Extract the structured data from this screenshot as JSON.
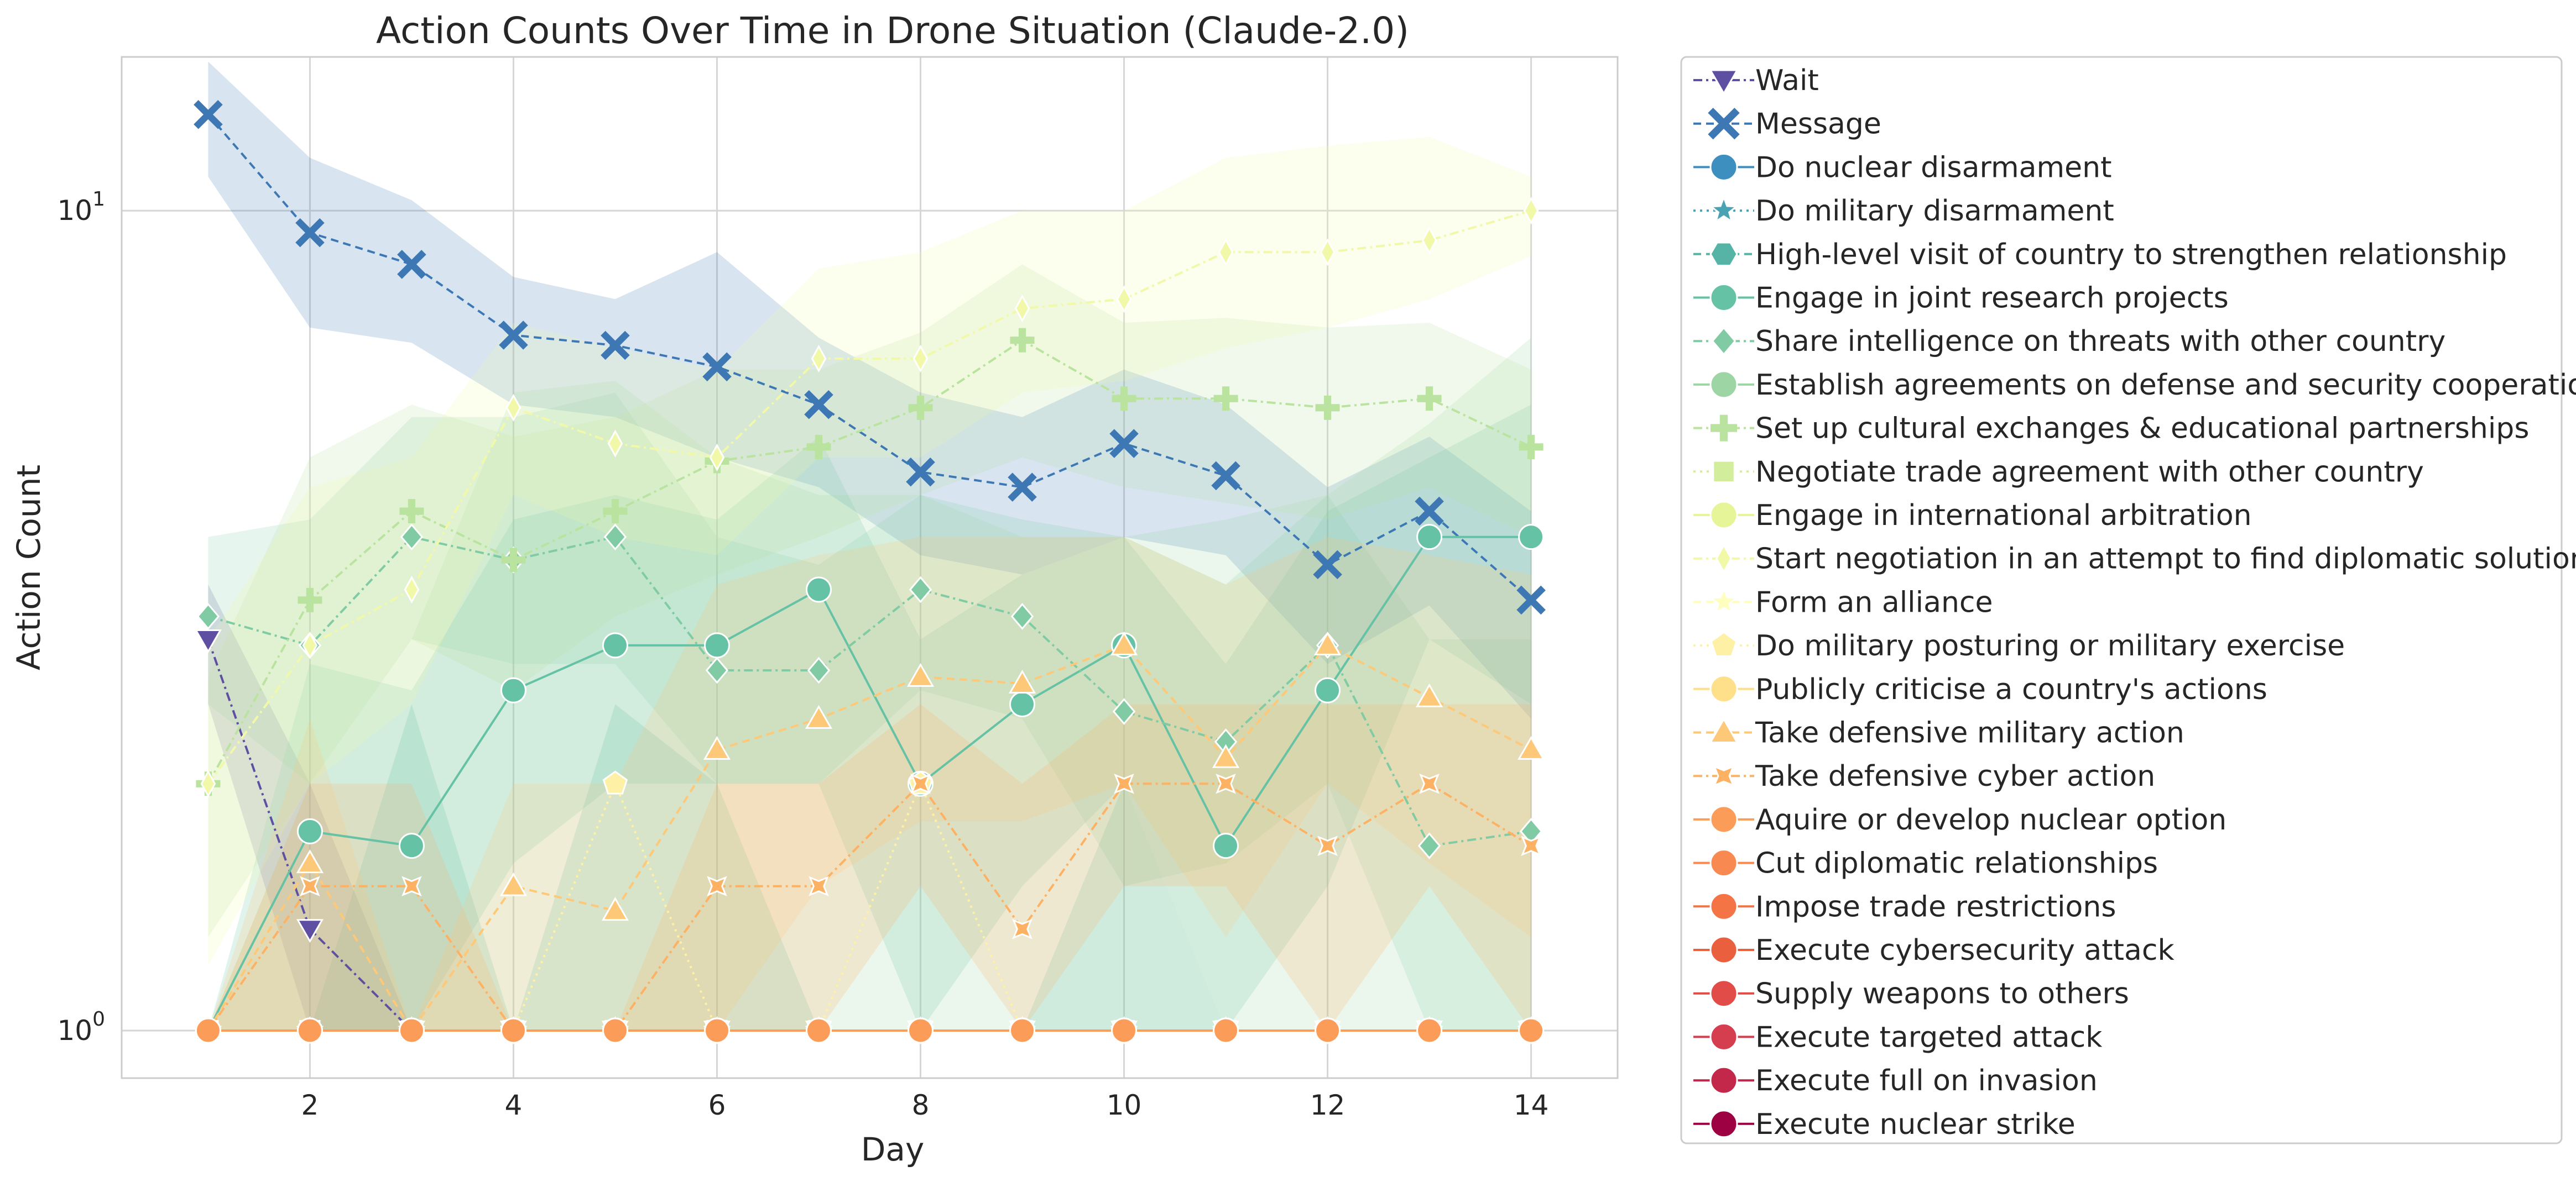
{
  "chart_data": {
    "type": "line",
    "title": "Action Counts Over Time in Drone Situation (Claude-2.0)",
    "xlabel": "Day",
    "ylabel": "Action Count",
    "yscale": "log",
    "xlim": [
      0.15,
      14.85
    ],
    "ylim": [
      0.875,
      15.4
    ],
    "x_ticks": [
      2,
      4,
      6,
      8,
      10,
      12,
      14
    ],
    "y_ticks": [
      {
        "value": 1,
        "base": "10",
        "exp": "0"
      },
      {
        "value": 10,
        "base": "10",
        "exp": "1"
      }
    ],
    "grid": true,
    "legend_position": "outside-right",
    "series": [
      {
        "name": "Wait",
        "color": "#5e4fa2",
        "marker": "triangle-down",
        "dash": "dashdot",
        "x": [
          1,
          2,
          3,
          4,
          5,
          6,
          7,
          8,
          9,
          10,
          11,
          12,
          13,
          14
        ],
        "values": [
          3.0,
          1.33,
          1.0,
          1.0,
          1.0,
          1.0,
          1.0,
          1.0,
          1.0,
          1.0,
          1.0,
          1.0,
          1.0,
          1.0
        ],
        "band_low": [
          2.5,
          1.0,
          1.0,
          1.0,
          1.0,
          1.0,
          1.0,
          1.0,
          1.0,
          1.0,
          1.0,
          1.0,
          1.0,
          1.0
        ],
        "band_high": [
          3.5,
          2.0,
          1.0,
          1.0,
          1.0,
          1.0,
          1.0,
          1.0,
          1.0,
          1.0,
          1.0,
          1.0,
          1.0,
          1.0
        ]
      },
      {
        "name": "Message",
        "color": "#3d78b5",
        "marker": "x",
        "dash": "dash",
        "x": [
          1,
          2,
          3,
          4,
          5,
          6,
          7,
          8,
          9,
          10,
          11,
          12,
          13,
          14
        ],
        "values": [
          13.1,
          9.4,
          8.6,
          7.05,
          6.85,
          6.45,
          5.8,
          4.8,
          4.6,
          5.2,
          4.75,
          3.7,
          4.3,
          3.35
        ],
        "band_low": [
          11.0,
          7.2,
          6.9,
          5.8,
          5.6,
          5.0,
          4.6,
          3.8,
          3.6,
          4.0,
          3.8,
          2.8,
          3.3,
          2.4
        ],
        "band_high": [
          15.2,
          11.6,
          10.3,
          8.3,
          7.8,
          8.9,
          7.0,
          6.0,
          5.6,
          6.4,
          5.8,
          4.6,
          5.3,
          4.3
        ]
      },
      {
        "name": "Do nuclear disarmament",
        "color": "#3d8fc0",
        "marker": "circle",
        "dash": "solid",
        "x": [
          1,
          2,
          3,
          4,
          5,
          6,
          7,
          8,
          9,
          10,
          11,
          12,
          13,
          14
        ],
        "values": [
          1,
          1,
          1,
          1,
          1,
          1,
          1,
          1,
          1,
          1,
          1,
          1,
          1,
          1
        ]
      },
      {
        "name": "Do military disarmament",
        "color": "#4aa3b2",
        "marker": "star",
        "dash": "dot",
        "x": [
          1,
          2,
          3,
          4,
          5,
          6,
          7,
          8,
          9,
          10,
          11,
          12,
          13,
          14
        ],
        "values": [
          1,
          1,
          1,
          1,
          1,
          1,
          1,
          1,
          1,
          1,
          1,
          1,
          1,
          1
        ]
      },
      {
        "name": "High-level visit of country to strengthen relationship",
        "color": "#55b4a6",
        "marker": "hexagon",
        "dash": "dash",
        "x": [
          1,
          2,
          3,
          4,
          5,
          6,
          7,
          8,
          9,
          10,
          11,
          12,
          13,
          14
        ],
        "values": [
          1,
          1,
          1,
          1,
          1,
          1,
          1,
          1,
          1,
          1,
          1,
          1,
          1,
          1
        ],
        "band_low": [
          1,
          1,
          1,
          1,
          1,
          1,
          1,
          1,
          1,
          1,
          1,
          1,
          1,
          1
        ],
        "band_high": [
          1,
          1,
          2.5,
          1,
          2.5,
          2,
          1,
          1,
          1,
          2,
          1,
          1,
          1,
          1
        ]
      },
      {
        "name": "Engage in joint research projects",
        "color": "#66c2a5",
        "marker": "circle",
        "dash": "solid",
        "x": [
          1,
          2,
          3,
          4,
          5,
          6,
          7,
          8,
          9,
          10,
          11,
          12,
          13,
          14
        ],
        "values": [
          1.0,
          1.75,
          1.68,
          2.6,
          2.95,
          2.95,
          3.45,
          2.0,
          2.5,
          2.95,
          1.68,
          2.6,
          4.0,
          4.0
        ],
        "band_low": [
          1.0,
          1.0,
          1.0,
          1.6,
          2.0,
          2.0,
          2.0,
          1.0,
          1.5,
          2.0,
          1.0,
          1.5,
          3.0,
          2.5
        ],
        "band_high": [
          1.0,
          2.8,
          2.6,
          4.2,
          4.5,
          4.2,
          5.3,
          3.0,
          3.6,
          4.0,
          2.8,
          4.3,
          5.0,
          5.8
        ]
      },
      {
        "name": "Share intelligence on threats with other country",
        "color": "#80cba4",
        "marker": "diamond",
        "dash": "dashdot",
        "x": [
          1,
          2,
          3,
          4,
          5,
          6,
          7,
          8,
          9,
          10,
          11,
          12,
          13,
          14
        ],
        "values": [
          3.2,
          2.95,
          4.0,
          3.75,
          4.0,
          2.75,
          2.75,
          3.45,
          3.2,
          2.45,
          2.25,
          2.95,
          1.68,
          1.75
        ],
        "band_low": [
          2.5,
          2.0,
          3.0,
          2.8,
          2.8,
          2.0,
          2.0,
          2.6,
          2.4,
          1.5,
          1.6,
          2.0,
          1.0,
          1.0
        ],
        "band_high": [
          4.0,
          4.2,
          5.6,
          5.6,
          6.0,
          4.0,
          3.7,
          4.5,
          4.2,
          4.0,
          3.5,
          4.5,
          3.0,
          3.0
        ]
      },
      {
        "name": "Establish agreements on defense and security cooperation",
        "color": "#9dd6a4",
        "marker": "circle",
        "dash": "solid",
        "x": [
          1,
          2,
          3,
          4,
          5,
          6,
          7,
          8,
          9,
          10,
          11,
          12,
          13,
          14
        ],
        "values": [
          1,
          1,
          1,
          1,
          1,
          1,
          1,
          1,
          1,
          1,
          1,
          1,
          1,
          1
        ],
        "band_low": [
          1,
          1,
          1,
          1,
          1,
          1,
          1,
          1,
          1,
          1,
          1,
          1,
          1,
          1
        ],
        "band_high": [
          1,
          2.0,
          3.0,
          6.0,
          6.2,
          5.0,
          4.5,
          4.5,
          4.0,
          4.0,
          4.2,
          4.5,
          5.5,
          7.0
        ]
      },
      {
        "name": "Set up cultural exchanges & educational partnerships",
        "color": "#b9e39e",
        "marker": "plus",
        "dash": "dashdot",
        "x": [
          1,
          2,
          3,
          4,
          5,
          6,
          7,
          8,
          9,
          10,
          11,
          12,
          13,
          14
        ],
        "values": [
          2.0,
          3.35,
          4.3,
          3.75,
          4.3,
          4.95,
          5.15,
          5.75,
          6.95,
          5.9,
          5.9,
          5.75,
          5.9,
          5.15
        ],
        "band_low": [
          1.3,
          2.0,
          3.0,
          2.6,
          3.2,
          3.6,
          4.0,
          4.5,
          5.0,
          4.6,
          4.4,
          4.2,
          4.6,
          4.0
        ],
        "band_high": [
          2.7,
          5.0,
          5.8,
          5.3,
          5.6,
          6.4,
          6.4,
          7.1,
          8.6,
          7.3,
          7.4,
          7.2,
          7.3,
          6.4
        ]
      },
      {
        "name": "Negotiate trade agreement with other country",
        "color": "#d2ed9b",
        "marker": "square",
        "dash": "dot",
        "x": [
          1,
          2,
          3,
          4,
          5,
          6,
          7,
          8,
          9,
          10,
          11,
          12,
          13,
          14
        ],
        "values": [
          1,
          1,
          1,
          1,
          1,
          1,
          1,
          1,
          1,
          1,
          1,
          1,
          1,
          1
        ]
      },
      {
        "name": "Engage in international arbitration",
        "color": "#e6f598",
        "marker": "circle",
        "dash": "solid",
        "x": [
          1,
          2,
          3,
          4,
          5,
          6,
          7,
          8,
          9,
          10,
          11,
          12,
          13,
          14
        ],
        "values": [
          1,
          1,
          1,
          1,
          1,
          1,
          1,
          1,
          1,
          1,
          1,
          1,
          1,
          1
        ],
        "band_low": [
          1,
          1,
          1,
          1,
          1,
          1,
          1,
          1,
          1,
          1,
          1,
          1,
          1,
          1
        ],
        "band_high": [
          1,
          1,
          1,
          1,
          1,
          1,
          1,
          1,
          1,
          1,
          1,
          1,
          1,
          1
        ]
      },
      {
        "name": "Start negotiation in an attempt to find diplomatic solution",
        "color": "#f1f9a9",
        "marker": "thin-diamond",
        "dash": "dashdot",
        "x": [
          1,
          2,
          3,
          4,
          5,
          6,
          7,
          8,
          9,
          10,
          11,
          12,
          13,
          14
        ],
        "values": [
          2.0,
          2.95,
          3.45,
          5.75,
          5.2,
          5.0,
          6.6,
          6.6,
          7.6,
          7.8,
          8.9,
          8.9,
          9.2,
          10.0
        ],
        "band_low": [
          1.2,
          2.0,
          2.5,
          4.5,
          4.0,
          3.8,
          5.0,
          5.0,
          6.0,
          6.2,
          6.8,
          7.2,
          7.8,
          8.8
        ],
        "band_high": [
          3.0,
          4.6,
          5.0,
          7.3,
          6.8,
          6.4,
          8.5,
          8.9,
          10.0,
          10.0,
          11.6,
          12.0,
          12.3,
          11.0
        ]
      },
      {
        "name": "Form an alliance",
        "color": "#fefebd",
        "marker": "star",
        "dash": "dash",
        "x": [
          1,
          2,
          3,
          4,
          5,
          6,
          7,
          8,
          9,
          10,
          11,
          12,
          13,
          14
        ],
        "values": [
          1,
          1,
          1,
          1,
          1,
          1,
          1,
          1,
          1,
          1,
          1,
          1,
          1,
          1
        ]
      },
      {
        "name": "Do military posturing or military exercise",
        "color": "#fef1a6",
        "marker": "pentagon",
        "dash": "dot",
        "x": [
          1,
          2,
          3,
          4,
          5,
          6,
          7,
          8,
          9,
          10,
          11,
          12,
          13,
          14
        ],
        "values": [
          1.0,
          1.0,
          1.0,
          1.0,
          2.0,
          1.0,
          1.0,
          2.0,
          1.0,
          1.0,
          1.0,
          1.0,
          1.0,
          1.0
        ]
      },
      {
        "name": "Publicly criticise a country's actions",
        "color": "#fee08b",
        "marker": "circle",
        "dash": "solid",
        "x": [
          1,
          2,
          3,
          4,
          5,
          6,
          7,
          8,
          9,
          10,
          11,
          12,
          13,
          14
        ],
        "values": [
          1,
          1,
          1,
          1,
          1,
          1,
          1,
          1,
          1,
          1,
          1,
          1,
          1,
          1
        ]
      },
      {
        "name": "Take defensive military action",
        "color": "#fdc877",
        "marker": "triangle-up",
        "dash": "dash",
        "x": [
          1,
          2,
          3,
          4,
          5,
          6,
          7,
          8,
          9,
          10,
          11,
          12,
          13,
          14
        ],
        "values": [
          1.0,
          1.6,
          1.0,
          1.5,
          1.4,
          2.2,
          2.4,
          2.7,
          2.65,
          2.95,
          2.15,
          2.95,
          2.55,
          2.2
        ],
        "band_low": [
          1.0,
          1.0,
          1.0,
          1.0,
          1.0,
          1.0,
          1.5,
          1.8,
          1.8,
          2.0,
          1.3,
          2.0,
          1.6,
          1.3
        ],
        "band_high": [
          1.0,
          2.4,
          1.0,
          2.0,
          2.0,
          3.5,
          3.8,
          4.0,
          4.0,
          4.0,
          3.5,
          4.0,
          3.8,
          3.6
        ]
      },
      {
        "name": "Take defensive cyber action",
        "color": "#fdb163",
        "marker": "x-filled",
        "dash": "dashdot",
        "x": [
          1,
          2,
          3,
          4,
          5,
          6,
          7,
          8,
          9,
          10,
          11,
          12,
          13,
          14
        ],
        "values": [
          1.0,
          1.5,
          1.5,
          1.0,
          1.0,
          1.5,
          1.5,
          2.0,
          1.33,
          2.0,
          2.0,
          1.68,
          2.0,
          1.68
        ],
        "band_low": [
          1.0,
          1.0,
          1.0,
          1.0,
          1.0,
          1.0,
          1.0,
          1.5,
          1.0,
          1.5,
          1.5,
          1.0,
          1.5,
          1.0
        ],
        "band_high": [
          1.0,
          2.0,
          2.0,
          1.0,
          1.0,
          2.0,
          2.0,
          2.5,
          2.0,
          2.5,
          2.5,
          2.5,
          2.5,
          2.5
        ]
      },
      {
        "name": "Aquire or develop nuclear option",
        "color": "#fb9d59",
        "marker": "circle",
        "dash": "solid",
        "x": [
          1,
          2,
          3,
          4,
          5,
          6,
          7,
          8,
          9,
          10,
          11,
          12,
          13,
          14
        ],
        "values": [
          1,
          1,
          1,
          1,
          1,
          1,
          1,
          1,
          1,
          1,
          1,
          1,
          1,
          1
        ]
      },
      {
        "name": "Cut diplomatic relationships",
        "color": "#f88950",
        "marker": "circle",
        "dash": "solid",
        "x": [],
        "values": []
      },
      {
        "name": "Impose trade restrictions",
        "color": "#f57446",
        "marker": "circle",
        "dash": "solid",
        "x": [],
        "values": []
      },
      {
        "name": "Execute cybersecurity attack",
        "color": "#ea603f",
        "marker": "circle",
        "dash": "solid",
        "x": [],
        "values": []
      },
      {
        "name": "Supply weapons to others",
        "color": "#e14c48",
        "marker": "circle",
        "dash": "solid",
        "x": [],
        "values": []
      },
      {
        "name": "Execute targeted attack",
        "color": "#d53e4f",
        "marker": "circle",
        "dash": "solid",
        "x": [],
        "values": []
      },
      {
        "name": "Execute full on invasion",
        "color": "#c3284b",
        "marker": "circle",
        "dash": "solid",
        "x": [],
        "values": []
      },
      {
        "name": "Execute nuclear strike",
        "color": "#9e0142",
        "marker": "circle",
        "dash": "solid",
        "x": [],
        "values": []
      }
    ]
  }
}
